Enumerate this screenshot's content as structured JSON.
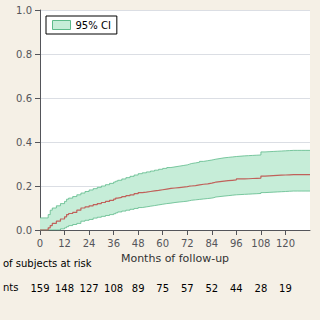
{
  "chart_data": {
    "type": "step",
    "xlabel": "Months of follow-up",
    "xlim": [
      0,
      132
    ],
    "ylim": [
      0,
      1.0
    ],
    "xticks": [
      0,
      12,
      24,
      36,
      48,
      60,
      72,
      84,
      96,
      108,
      120
    ],
    "yticks": [
      {
        "value": 0.0,
        "label": "0.0"
      },
      0.2,
      0.4,
      0.6,
      0.8,
      {
        "value": 1.0,
        "label": "1.0"
      }
    ],
    "grid": true,
    "legend": "upper left",
    "background_color": "#f5f0e6",
    "plot_bg_color": "#ffffff",
    "x": [
      0,
      3,
      4,
      5,
      6,
      8,
      10,
      12,
      13,
      14,
      16,
      18,
      20,
      22,
      24,
      26,
      28,
      30,
      32,
      34,
      36,
      37,
      38,
      40,
      42,
      44,
      46,
      48,
      50,
      52,
      54,
      56,
      58,
      60,
      62,
      64,
      66,
      68,
      70,
      72,
      73,
      74,
      76,
      78,
      80,
      82,
      84,
      85,
      86,
      88,
      90,
      92,
      94,
      96,
      100,
      102,
      104,
      106,
      108,
      110,
      112,
      114,
      116,
      118,
      120,
      122,
      124,
      126,
      128,
      130,
      132
    ],
    "series": [
      {
        "color": "#c0615a",
        "values": [
          0.0,
          0.0,
          0.01,
          0.02,
          0.03,
          0.04,
          0.05,
          0.06,
          0.07,
          0.075,
          0.08,
          0.09,
          0.1,
          0.105,
          0.11,
          0.115,
          0.12,
          0.125,
          0.13,
          0.135,
          0.14,
          0.145,
          0.148,
          0.152,
          0.156,
          0.16,
          0.165,
          0.17,
          0.172,
          0.175,
          0.178,
          0.18,
          0.183,
          0.186,
          0.189,
          0.191,
          0.193,
          0.195,
          0.197,
          0.199,
          0.2,
          0.202,
          0.205,
          0.208,
          0.21,
          0.213,
          0.215,
          0.218,
          0.22,
          0.222,
          0.224,
          0.226,
          0.228,
          0.232,
          0.233,
          0.234,
          0.235,
          0.236,
          0.245,
          0.246,
          0.247,
          0.248,
          0.249,
          0.25,
          0.251,
          0.252,
          0.252,
          0.252,
          0.252,
          0.252,
          0.252
        ]
      }
    ],
    "ci": {
      "name": "95% CI",
      "color": "#c6edd8",
      "line_color": "#5dba8a",
      "upper": [
        0.055,
        0.055,
        0.07,
        0.09,
        0.1,
        0.11,
        0.12,
        0.13,
        0.14,
        0.145,
        0.152,
        0.16,
        0.168,
        0.175,
        0.182,
        0.188,
        0.194,
        0.2,
        0.206,
        0.212,
        0.218,
        0.222,
        0.226,
        0.232,
        0.238,
        0.244,
        0.25,
        0.256,
        0.26,
        0.264,
        0.268,
        0.272,
        0.276,
        0.28,
        0.284,
        0.287,
        0.29,
        0.293,
        0.296,
        0.299,
        0.302,
        0.305,
        0.308,
        0.312,
        0.315,
        0.318,
        0.32,
        0.322,
        0.325,
        0.328,
        0.33,
        0.332,
        0.334,
        0.337,
        0.338,
        0.339,
        0.34,
        0.341,
        0.355,
        0.356,
        0.357,
        0.358,
        0.359,
        0.36,
        0.361,
        0.362,
        0.362,
        0.362,
        0.362,
        0.362,
        0.362
      ],
      "lower": [
        0.0,
        0.0,
        0.0,
        0.0,
        0.0,
        0.0,
        0.005,
        0.01,
        0.015,
        0.02,
        0.025,
        0.03,
        0.04,
        0.044,
        0.048,
        0.054,
        0.058,
        0.062,
        0.066,
        0.07,
        0.074,
        0.078,
        0.082,
        0.086,
        0.09,
        0.094,
        0.098,
        0.102,
        0.105,
        0.108,
        0.111,
        0.114,
        0.117,
        0.12,
        0.122,
        0.125,
        0.127,
        0.129,
        0.131,
        0.133,
        0.135,
        0.137,
        0.139,
        0.141,
        0.143,
        0.145,
        0.147,
        0.15,
        0.152,
        0.154,
        0.156,
        0.158,
        0.16,
        0.162,
        0.163,
        0.164,
        0.165,
        0.166,
        0.17,
        0.171,
        0.172,
        0.173,
        0.174,
        0.175,
        0.176,
        0.177,
        0.177,
        0.177,
        0.177,
        0.177,
        0.177
      ]
    },
    "at_risk": {
      "label": "of subjects at risk",
      "prefix": "nts",
      "times": [
        0,
        12,
        24,
        36,
        48,
        60,
        72,
        84,
        96,
        108,
        120
      ],
      "counts": [
        159,
        148,
        127,
        108,
        89,
        75,
        57,
        52,
        44,
        28,
        19
      ]
    }
  }
}
